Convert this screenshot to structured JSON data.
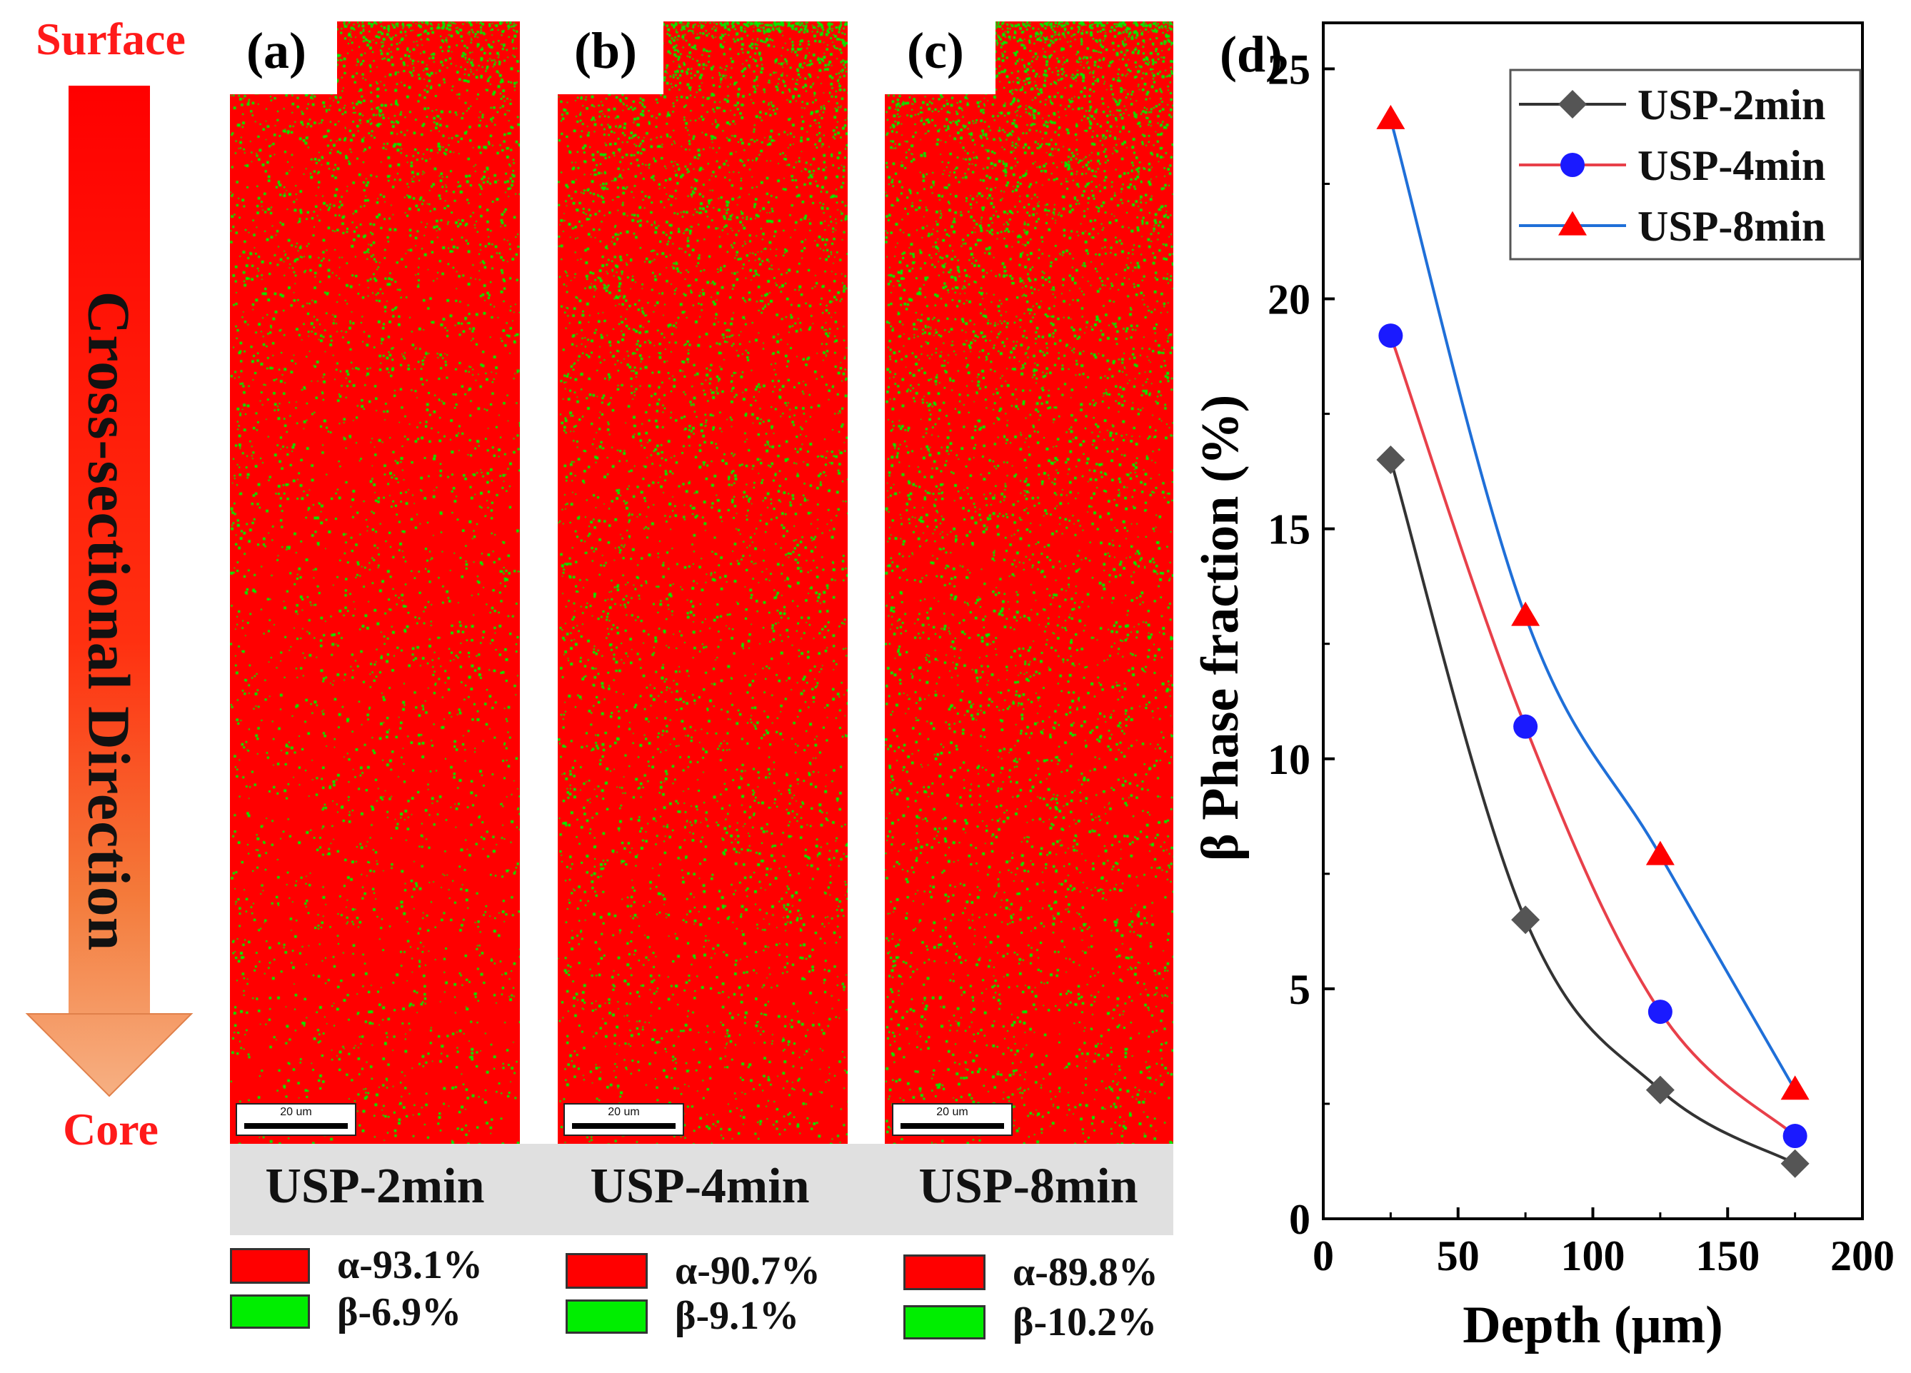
{
  "left_figure": {
    "surface_label": "Surface",
    "core_label": "Core",
    "direction_label": "Cross-sectional  Direction",
    "panels": [
      {
        "label": "(a)",
        "sample": "USP-2min",
        "scale_bar": "20 um",
        "alpha_text": "α-93.1%",
        "beta_text": "β-6.9%",
        "alpha_fraction": 93.1,
        "beta_fraction": 6.9
      },
      {
        "label": "(b)",
        "sample": "USP-4min",
        "scale_bar": "20 um",
        "alpha_text": "α-90.7%",
        "beta_text": "β-9.1%",
        "alpha_fraction": 90.7,
        "beta_fraction": 9.1
      },
      {
        "label": "(c)",
        "sample": "USP-8min",
        "scale_bar": "20 um",
        "alpha_text": "α-89.8%",
        "beta_text": "β-10.2%",
        "alpha_fraction": 89.8,
        "beta_fraction": 10.2
      }
    ],
    "colors": {
      "alpha": "#ff0000",
      "beta": "#00ee00",
      "surface_text": "#ff1a1a"
    }
  },
  "chart_data": {
    "type": "line",
    "panel_label": "(d)",
    "x": [
      25,
      75,
      125,
      175
    ],
    "xlabel": "Depth (μm)",
    "ylabel": "β Phase fraction (%)",
    "xlim": [
      0,
      200
    ],
    "ylim": [
      0,
      25
    ],
    "xticks": [
      0,
      50,
      100,
      150,
      200
    ],
    "yticks": [
      0,
      5,
      10,
      15,
      20,
      25
    ],
    "legend_position": "top-right",
    "series": [
      {
        "name": "USP-2min",
        "values": [
          16.5,
          6.5,
          2.8,
          1.2
        ],
        "marker": "diamond",
        "marker_color": "#555555",
        "line_color": "#333333"
      },
      {
        "name": "USP-4min",
        "values": [
          19.2,
          10.7,
          4.5,
          1.8
        ],
        "marker": "circle",
        "marker_color": "#1a1aff",
        "line_color": "#e8404a"
      },
      {
        "name": "USP-8min",
        "values": [
          23.9,
          13.1,
          7.9,
          2.8
        ],
        "marker": "triangle",
        "marker_color": "#ff0000",
        "line_color": "#1f6fd8"
      }
    ]
  }
}
